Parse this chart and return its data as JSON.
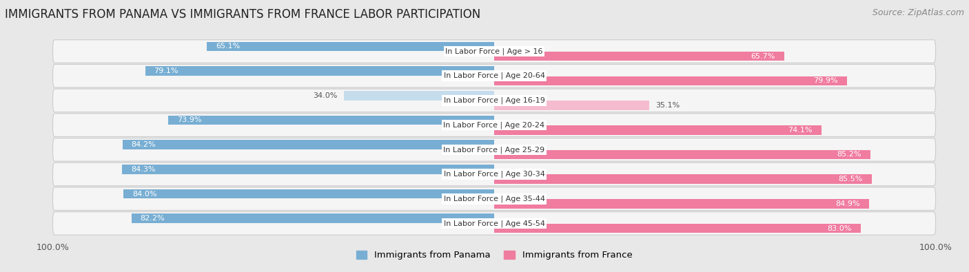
{
  "title": "IMMIGRANTS FROM PANAMA VS IMMIGRANTS FROM FRANCE LABOR PARTICIPATION",
  "source": "Source: ZipAtlas.com",
  "categories": [
    "In Labor Force | Age > 16",
    "In Labor Force | Age 20-64",
    "In Labor Force | Age 16-19",
    "In Labor Force | Age 20-24",
    "In Labor Force | Age 25-29",
    "In Labor Force | Age 30-34",
    "In Labor Force | Age 35-44",
    "In Labor Force | Age 45-54"
  ],
  "panama_values": [
    65.1,
    79.1,
    34.0,
    73.9,
    84.2,
    84.3,
    84.0,
    82.2
  ],
  "france_values": [
    65.7,
    79.9,
    35.1,
    74.1,
    85.2,
    85.5,
    84.9,
    83.0
  ],
  "panama_color": "#78aed3",
  "panama_color_light": "#c5dced",
  "france_color": "#f07ca0",
  "france_color_light": "#f5bcd0",
  "max_val": 100.0,
  "bg_color": "#e8e8e8",
  "row_bg_color": "#f5f5f5",
  "legend_panama": "Immigrants from Panama",
  "legend_france": "Immigrants from France",
  "title_fontsize": 12,
  "label_fontsize": 8,
  "value_fontsize": 8,
  "source_fontsize": 9,
  "bar_height": 0.38
}
